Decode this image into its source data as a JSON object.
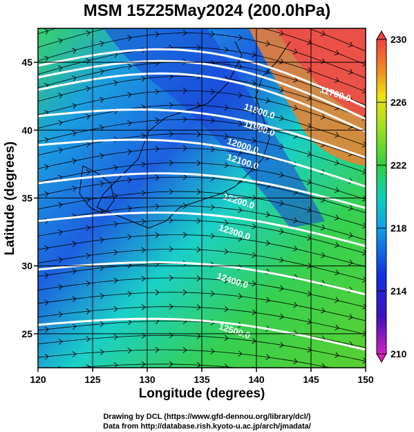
{
  "title": "MSM 15Z25May2024 (200.0hPa)",
  "xaxis": {
    "label": "Longitude (degrees)",
    "range": [
      120,
      150
    ],
    "ticks": [
      "120",
      "125",
      "130",
      "135",
      "140",
      "145",
      "150"
    ]
  },
  "yaxis": {
    "label": "Latitude  (degrees)",
    "range": [
      22.5,
      47.5
    ],
    "ticks": [
      "25",
      "30",
      "35",
      "40",
      "45"
    ]
  },
  "colorbar": {
    "range": [
      210,
      230
    ],
    "ticks": [
      "210",
      "214",
      "218",
      "222",
      "226",
      "230"
    ]
  },
  "contours": [
    {
      "label": "11700.0"
    },
    {
      "label": "11800.0"
    },
    {
      "label": "11900.0"
    },
    {
      "label": "12000.0"
    },
    {
      "label": "12100.0"
    },
    {
      "label": "12200.0"
    },
    {
      "label": "12300.0"
    },
    {
      "label": "12400.0"
    },
    {
      "label": "12500.0"
    }
  ],
  "credits": [
    "Drawing by DCL (https://www.gfd-dennou.org/library/dcl/)",
    "Data from http://database.rish.kyoto-u.ac.jp/arch/jmadata/"
  ]
}
